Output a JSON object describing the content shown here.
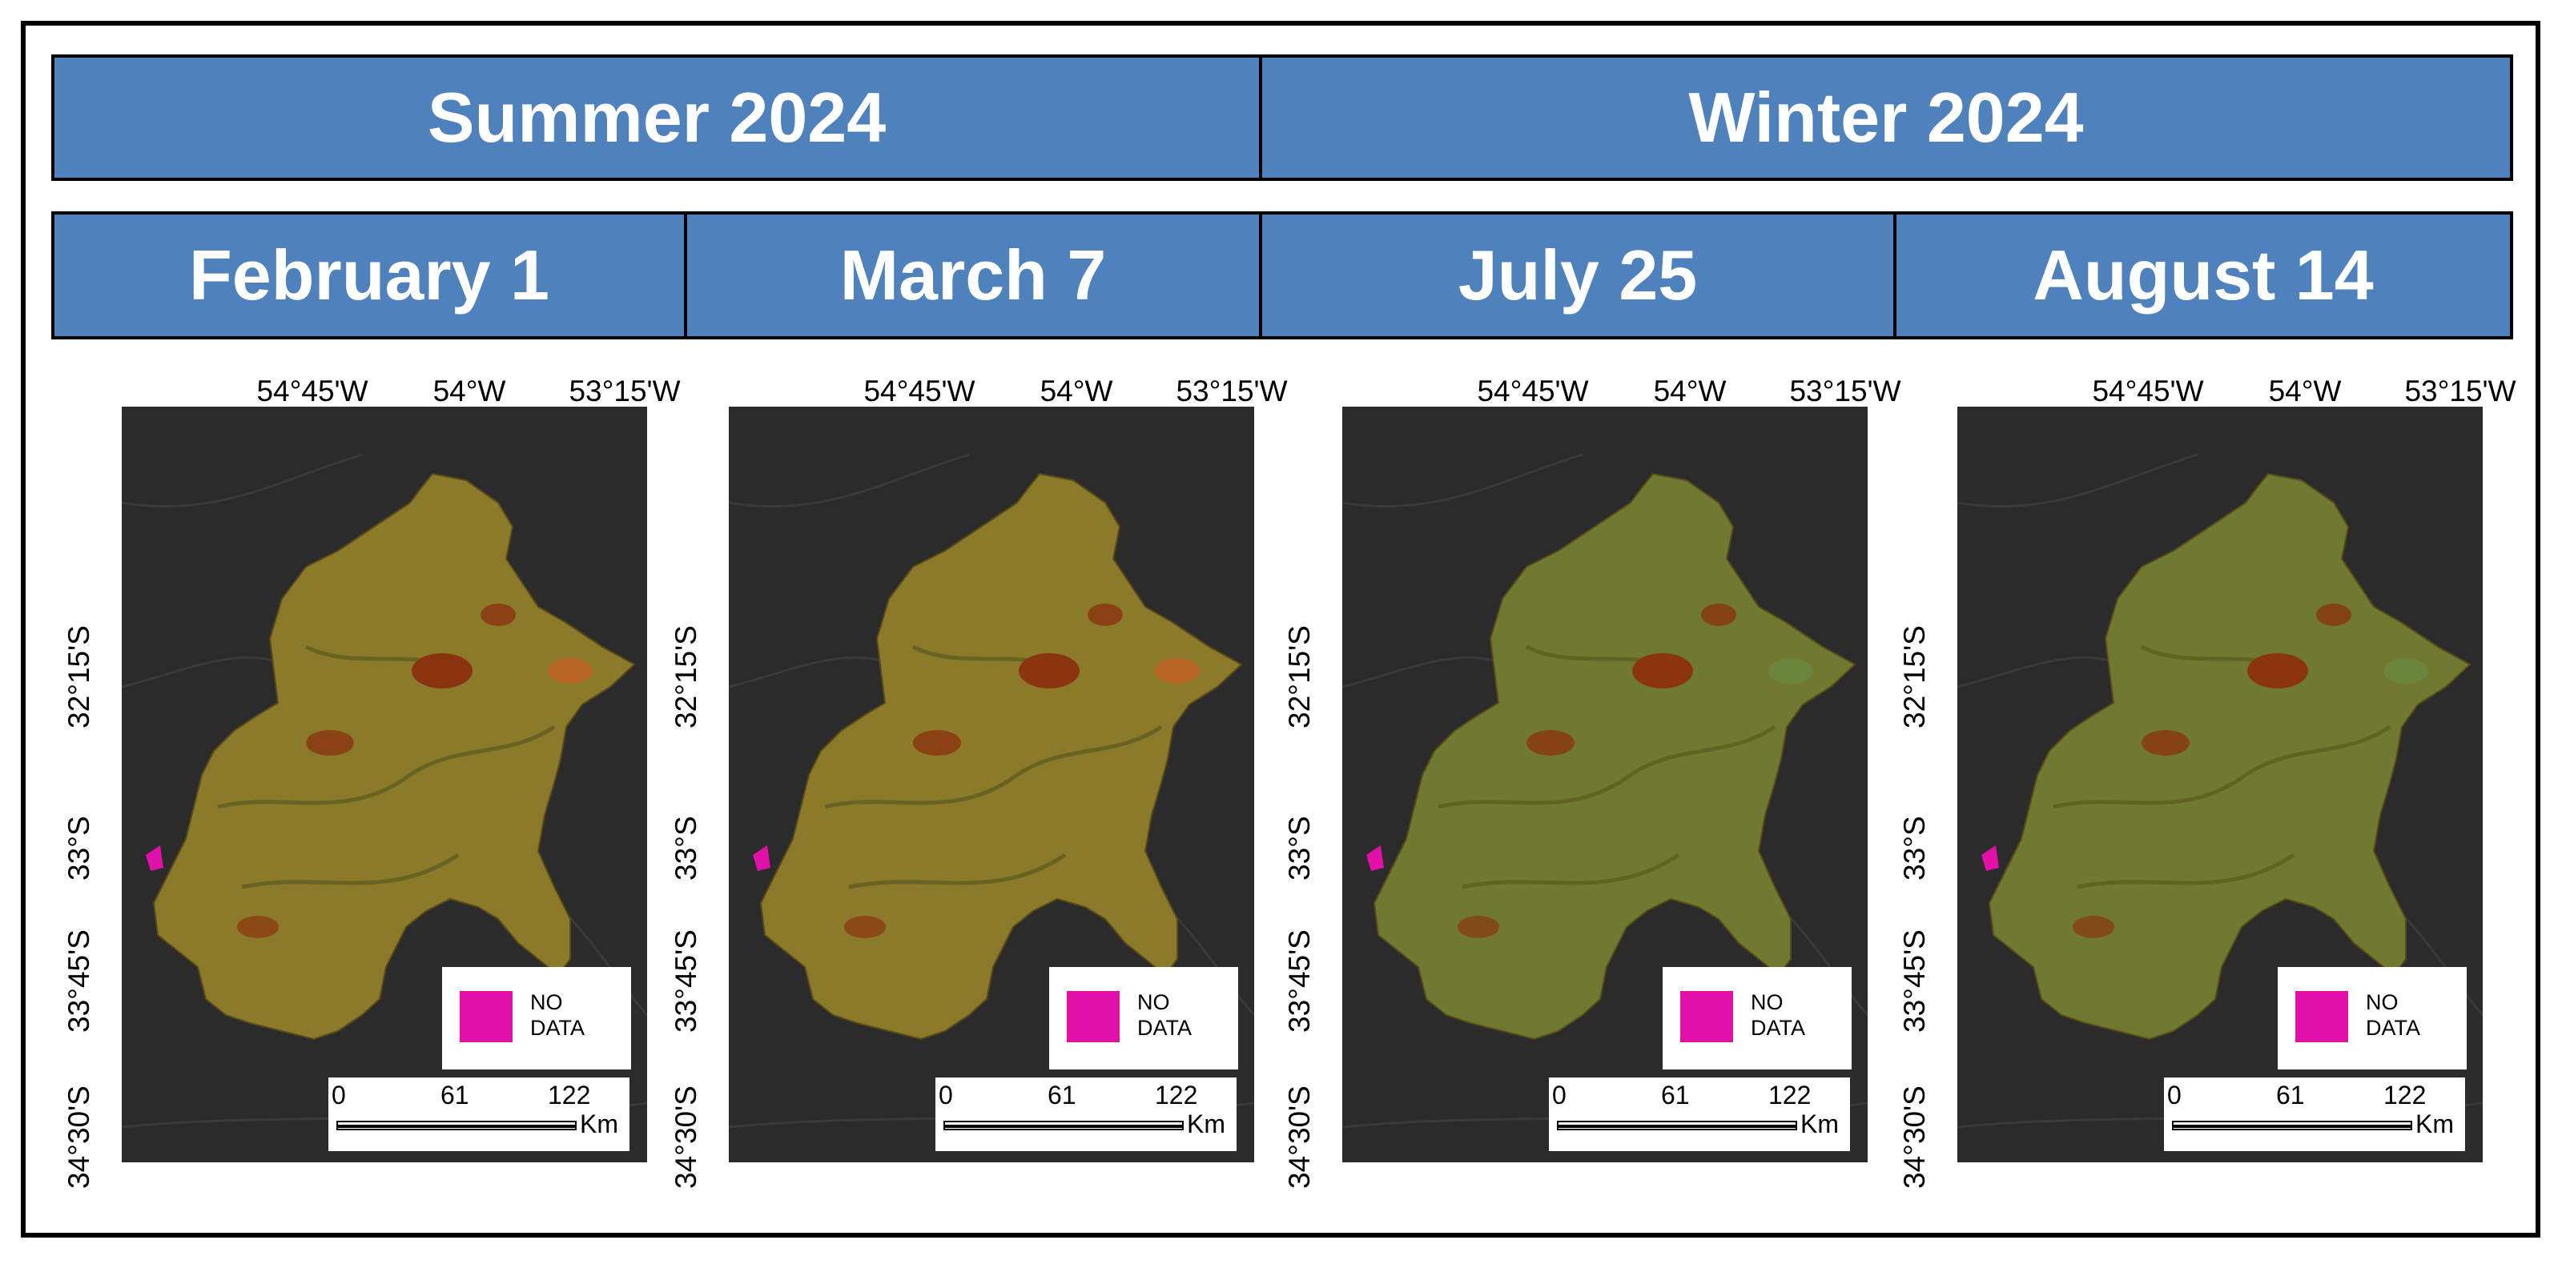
{
  "seasons": [
    {
      "label": "Summer 2024"
    },
    {
      "label": "Winter 2024"
    }
  ],
  "dates": [
    {
      "label": "February 1"
    },
    {
      "label": "March 7"
    },
    {
      "label": "July 25"
    },
    {
      "label": "August 14"
    }
  ],
  "axis": {
    "lon_labels": [
      "54°45'W",
      "54°W",
      "53°15'W"
    ],
    "lat_labels": [
      "32°15'S",
      "33°S",
      "33°45'S",
      "34°30'S"
    ]
  },
  "legend": {
    "line1": "NO",
    "line2": "DATA",
    "color": "#e010a8"
  },
  "scalebar": {
    "ticks": [
      "0",
      "61",
      "122"
    ],
    "unit": "Km"
  },
  "colors": {
    "header_fill": "#4f81bd",
    "map_background": "#2b2b2b",
    "summer_fill": "#8a7a2a",
    "winter_fill": "#6f7a30"
  }
}
